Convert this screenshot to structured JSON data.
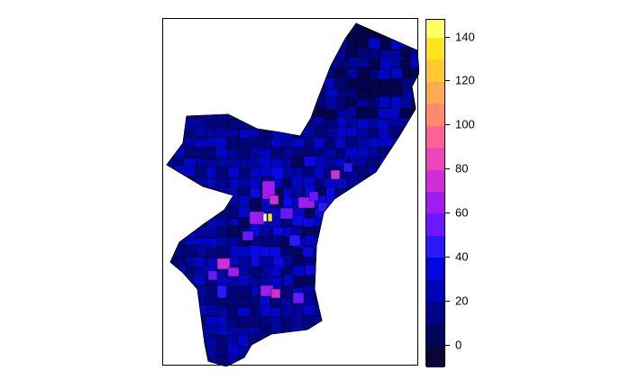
{
  "legend": {
    "ticks": [
      "0",
      "20",
      "40",
      "60",
      "80",
      "100",
      "120",
      "140"
    ],
    "range": [
      -10,
      148
    ],
    "bins": [
      {
        "from": -10,
        "to": 0,
        "color": "#0a0536"
      },
      {
        "from": 0,
        "to": 10,
        "color": "#02055c"
      },
      {
        "from": 10,
        "to": 20,
        "color": "#00048a"
      },
      {
        "from": 20,
        "to": 30,
        "color": "#0004b8"
      },
      {
        "from": 30,
        "to": 40,
        "color": "#0008e0"
      },
      {
        "from": 40,
        "to": 50,
        "color": "#2a18ff"
      },
      {
        "from": 50,
        "to": 60,
        "color": "#6a18ff"
      },
      {
        "from": 60,
        "to": 70,
        "color": "#a21cf2"
      },
      {
        "from": 70,
        "to": 80,
        "color": "#d12ed8"
      },
      {
        "from": 80,
        "to": 90,
        "color": "#ec46b8"
      },
      {
        "from": 90,
        "to": 100,
        "color": "#fc6296"
      },
      {
        "from": 100,
        "to": 110,
        "color": "#ff8a6e"
      },
      {
        "from": 110,
        "to": 120,
        "color": "#ffaa50"
      },
      {
        "from": 120,
        "to": 130,
        "color": "#ffca30"
      },
      {
        "from": 130,
        "to": 140,
        "color": "#ffe420"
      },
      {
        "from": 140,
        "to": 148,
        "color": "#ffff66"
      }
    ]
  },
  "map": {
    "base_color": "#00047a",
    "dark_color": "#02034a",
    "highlight_colors": [
      "#2a18ff",
      "#6a18ff",
      "#a21cf2",
      "#d12ed8",
      "#ffe420"
    ]
  }
}
